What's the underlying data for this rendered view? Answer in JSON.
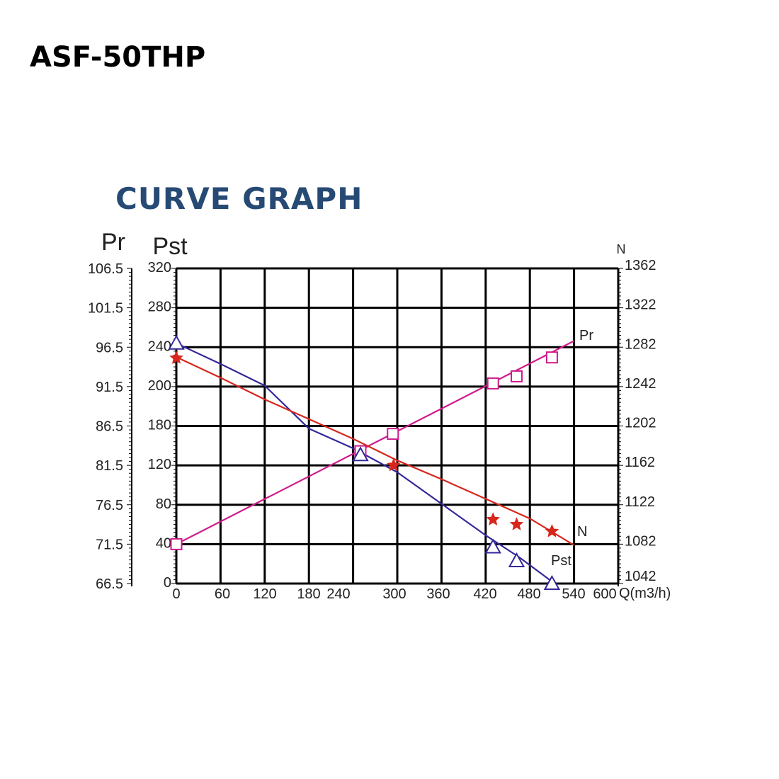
{
  "header": {
    "model": "ASF-50THP",
    "section_title": "CURVE GRAPH"
  },
  "colors": {
    "title_blue": "#264a74",
    "pr_curve": "#d01a8c",
    "pst_curve": "#32289a",
    "n_curve": "#d8261c",
    "grid": "#000000"
  },
  "chart_data": {
    "type": "line",
    "grid": true,
    "x_axis": {
      "label": "Q(m3/h)",
      "range": [
        0,
        540
      ],
      "tick_labels": [
        "0",
        "60",
        "120",
        "180",
        "240",
        "300",
        "360",
        "420",
        "480",
        "540",
        "600"
      ]
    },
    "left_axes": [
      {
        "label": "Pr",
        "tick_labels": [
          "106.5",
          "101.5",
          "96.5",
          "91.5",
          "86.5",
          "81.5",
          "76.5",
          "71.5",
          "66.5"
        ]
      },
      {
        "label": "Pst",
        "tick_labels": [
          "320",
          "280",
          "240",
          "200",
          "180",
          "120",
          "80",
          "40",
          "0"
        ]
      }
    ],
    "right_axis": {
      "label": "N",
      "tick_labels": [
        "1362",
        "1322",
        "1282",
        "1242",
        "1202",
        "1162",
        "1122",
        "1082",
        "1042"
      ]
    },
    "series": [
      {
        "name": "Pr",
        "axis": "Pr",
        "marker": "square",
        "color": "#d01a8c",
        "curve": [
          [
            0,
            71.5
          ],
          [
            540,
            97.3
          ]
        ],
        "points": [
          [
            0,
            71.5
          ],
          [
            250,
            83.3
          ],
          [
            294,
            85.5
          ],
          [
            430,
            91.9
          ],
          [
            462,
            92.8
          ],
          [
            510,
            95.2
          ]
        ]
      },
      {
        "name": "Pst",
        "axis": "Pst",
        "marker": "triangle",
        "color": "#32289a",
        "curve": [
          [
            0,
            244
          ],
          [
            60,
            223
          ],
          [
            120,
            201
          ],
          [
            180,
            176
          ],
          [
            240,
            146
          ],
          [
            300,
            113
          ],
          [
            360,
            81
          ],
          [
            420,
            49
          ],
          [
            465,
            27
          ],
          [
            510,
            2
          ]
        ],
        "points": [
          [
            0,
            244
          ],
          [
            250,
            136
          ],
          [
            430,
            37
          ],
          [
            462,
            23
          ],
          [
            510,
            0
          ]
        ]
      },
      {
        "name": "N",
        "axis": "N",
        "marker": "star",
        "color": "#d8261c",
        "curve": [
          [
            0,
            1272
          ],
          [
            60,
            1251
          ],
          [
            120,
            1229
          ],
          [
            180,
            1209
          ],
          [
            240,
            1189
          ],
          [
            300,
            1167
          ],
          [
            360,
            1148
          ],
          [
            420,
            1128
          ],
          [
            480,
            1108
          ],
          [
            540,
            1081
          ]
        ],
        "points": [
          [
            0,
            1271
          ],
          [
            295,
            1162
          ],
          [
            430,
            1107
          ],
          [
            462,
            1102
          ],
          [
            510,
            1095
          ]
        ]
      }
    ]
  }
}
